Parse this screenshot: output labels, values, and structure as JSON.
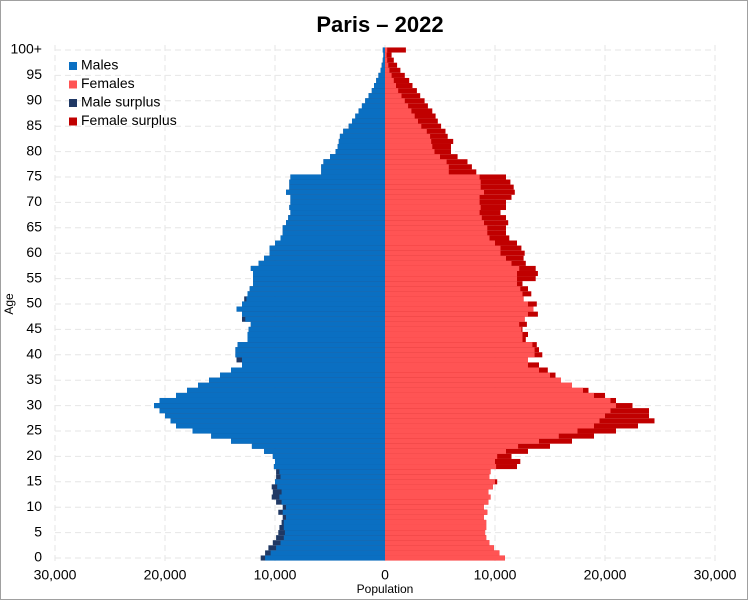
{
  "chart_data": {
    "type": "pyramid",
    "title": "Paris – 2022",
    "x_label": "Population",
    "y_label": "Age",
    "categories": [
      "0",
      null,
      null,
      null,
      null,
      "5",
      null,
      null,
      null,
      null,
      "10",
      null,
      null,
      null,
      null,
      "15",
      null,
      null,
      null,
      null,
      "20",
      null,
      null,
      null,
      null,
      "25",
      null,
      null,
      null,
      null,
      "30",
      null,
      null,
      null,
      null,
      "35",
      null,
      null,
      null,
      null,
      "40",
      null,
      null,
      null,
      null,
      "45",
      null,
      null,
      null,
      null,
      "50",
      null,
      null,
      null,
      null,
      "55",
      null,
      null,
      null,
      null,
      "60",
      null,
      null,
      null,
      null,
      "65",
      null,
      null,
      null,
      null,
      "70",
      null,
      null,
      null,
      null,
      "75",
      null,
      null,
      null,
      null,
      "80",
      null,
      null,
      null,
      null,
      "85",
      null,
      null,
      null,
      null,
      "90",
      null,
      null,
      null,
      null,
      "95",
      null,
      null,
      null,
      null,
      "100+"
    ],
    "series": [
      {
        "name": "Males",
        "color": "#0a6fc2",
        "side": "left",
        "values": [
          11300,
          10900,
          10600,
          10200,
          9900,
          9700,
          9600,
          9400,
          9300,
          9700,
          9300,
          9900,
          10300,
          10200,
          10300,
          10000,
          9900,
          9900,
          10100,
          10000,
          10200,
          11000,
          12100,
          14000,
          15800,
          17500,
          19000,
          19500,
          20000,
          20500,
          21000,
          20500,
          19000,
          18000,
          17000,
          16000,
          15000,
          14000,
          13000,
          13500,
          13600,
          13600,
          13400,
          12500,
          12500,
          12400,
          12200,
          13000,
          13000,
          13500,
          13000,
          12800,
          12500,
          12300,
          12000,
          12000,
          12000,
          12200,
          11500,
          11000,
          10500,
          10500,
          10000,
          9500,
          9300,
          9300,
          9000,
          8800,
          8600,
          8700,
          8600,
          8600,
          9000,
          8700,
          8700,
          8600,
          5800,
          5800,
          5600,
          5000,
          4500,
          4300,
          4200,
          4100,
          3800,
          3300,
          3000,
          2700,
          2400,
          2100,
          1800,
          1500,
          1200,
          1000,
          800,
          600,
          400,
          300,
          200,
          150,
          200
        ]
      },
      {
        "name": "Females",
        "color": "#ff5454",
        "side": "right",
        "values": [
          10900,
          10400,
          9900,
          9500,
          9200,
          9100,
          9200,
          9200,
          9000,
          9300,
          9000,
          9400,
          9600,
          9400,
          9800,
          10200,
          9500,
          9600,
          12000,
          12300,
          11500,
          13000,
          15000,
          17000,
          19000,
          21000,
          23000,
          24500,
          24000,
          24000,
          22500,
          21000,
          20000,
          18500,
          17000,
          16000,
          15500,
          14800,
          14000,
          13000,
          14300,
          14000,
          13800,
          12800,
          13000,
          12500,
          12900,
          12700,
          13900,
          13500,
          13800,
          12600,
          13300,
          13000,
          12500,
          13700,
          13900,
          13700,
          12800,
          12600,
          12700,
          12400,
          12000,
          11300,
          11000,
          11000,
          11200,
          11000,
          10500,
          11000,
          11000,
          11500,
          11800,
          11700,
          11400,
          11000,
          8300,
          7900,
          7500,
          6600,
          6000,
          6000,
          6200,
          5700,
          5500,
          5100,
          4800,
          4600,
          4300,
          3900,
          3600,
          3200,
          2900,
          2500,
          2200,
          1800,
          1400,
          1100,
          800,
          600,
          1900
        ]
      }
    ],
    "surplus": [
      {
        "name": "Male surplus",
        "color": "#1f3864"
      },
      {
        "name": "Female surplus",
        "color": "#c00000"
      }
    ],
    "xlim": [
      -30000,
      30000
    ],
    "xticks": [
      {
        "value": -30000,
        "label": "30,000"
      },
      {
        "value": -20000,
        "label": "20,000"
      },
      {
        "value": -10000,
        "label": "10,000"
      },
      0,
      {
        "value": 10000,
        "label": "10,000"
      },
      {
        "value": 20000,
        "label": "20,000"
      },
      {
        "value": 30000,
        "label": "30,000"
      }
    ],
    "grid": true
  }
}
